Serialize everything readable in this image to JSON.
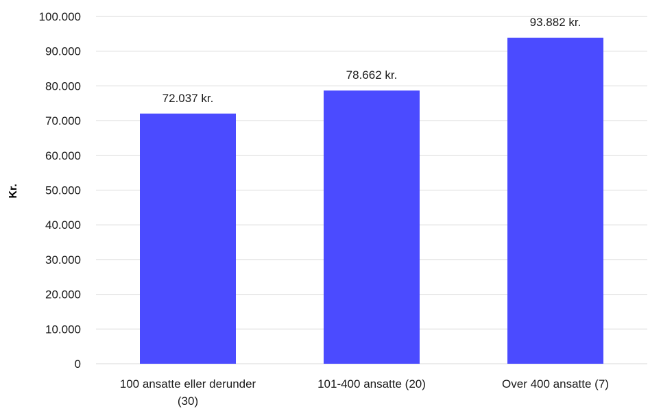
{
  "chart_data": {
    "type": "bar",
    "categories": [
      [
        "100 ansatte eller derunder",
        "(30)"
      ],
      [
        "101-400 ansatte (20)"
      ],
      [
        "Over 400 ansatte (7)"
      ]
    ],
    "values": [
      72037,
      78662,
      93882
    ],
    "data_labels": [
      "72.037 kr.",
      "78.662 kr.",
      "93.882 kr."
    ],
    "ylabel": "Kr.",
    "xlabel": "",
    "ylim": [
      0,
      100000
    ],
    "y_ticks": [
      0,
      10000,
      20000,
      30000,
      40000,
      50000,
      60000,
      70000,
      80000,
      90000,
      100000
    ],
    "y_tick_labels": [
      "0",
      "10.000",
      "20.000",
      "30.000",
      "40.000",
      "50.000",
      "60.000",
      "70.000",
      "80.000",
      "90.000",
      "100.000"
    ],
    "grid": true,
    "legend": "none",
    "bar_color": "#4b4bff"
  }
}
